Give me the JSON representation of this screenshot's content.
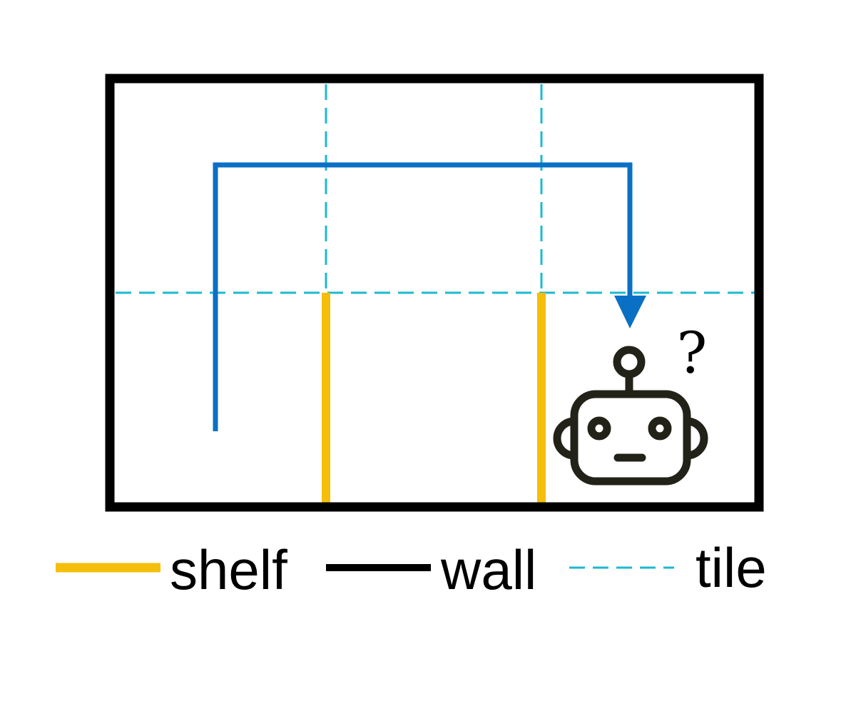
{
  "diagram": {
    "title_mark": "?",
    "colors": {
      "wall": "#000000",
      "shelf": "#F5BE0B",
      "tile": "#1DB9D0",
      "path": "#0A70C4",
      "robot": "#222218"
    },
    "legend": {
      "shelf_label": "shelf",
      "wall_label": "wall",
      "tile_label": "tile"
    },
    "icons": {
      "robot": "robot-icon",
      "arrow": "arrowhead-icon"
    }
  }
}
